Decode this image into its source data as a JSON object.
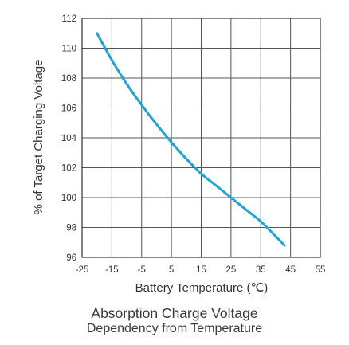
{
  "chart_data": {
    "type": "line",
    "title": "Absorption Charge Voltage",
    "subtitle": "Dependency from Temperature",
    "xlabel": "Battery Temperature (℃)",
    "ylabel": "% of Target Charging Voltage",
    "xlim": [
      -25,
      55
    ],
    "ylim": [
      96,
      112
    ],
    "x_ticks": [
      -25,
      -15,
      -5,
      5,
      15,
      25,
      35,
      45,
      55
    ],
    "y_ticks": [
      96,
      98,
      100,
      102,
      104,
      106,
      108,
      110,
      112
    ],
    "grid": true,
    "series": [
      {
        "color": "#1aa6dd",
        "x": [
          -20,
          -15,
          -10,
          -5,
          0,
          5,
          10,
          15,
          20,
          25,
          30,
          35,
          40,
          43
        ],
        "y": [
          111.0,
          109.2,
          107.6,
          106.2,
          104.9,
          103.7,
          102.6,
          101.6,
          100.8,
          100.0,
          99.2,
          98.4,
          97.4,
          96.8
        ]
      }
    ]
  }
}
